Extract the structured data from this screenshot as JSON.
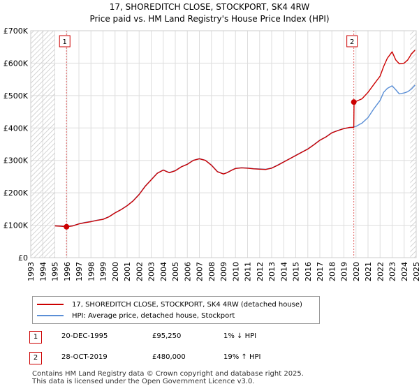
{
  "chart_data": {
    "type": "line",
    "title": "17, SHOREDITCH CLOSE, STOCKPORT, SK4 4RW",
    "subtitle": "Price paid vs. HM Land Registry's House Price Index (HPI)",
    "xlabel": "",
    "ylabel": "",
    "xlim": [
      1993,
      2025
    ],
    "ylim": [
      0,
      700000
    ],
    "x_ticks": [
      "1993",
      "1994",
      "1995",
      "1996",
      "1997",
      "1998",
      "1999",
      "2000",
      "2001",
      "2002",
      "2003",
      "2004",
      "2005",
      "2006",
      "2007",
      "2008",
      "2009",
      "2010",
      "2011",
      "2012",
      "2013",
      "2014",
      "2015",
      "2016",
      "2017",
      "2018",
      "2019",
      "2020",
      "2021",
      "2022",
      "2023",
      "2024",
      "2025"
    ],
    "y_ticks": [
      {
        "value": 0,
        "label": "£0"
      },
      {
        "value": 100000,
        "label": "£100K"
      },
      {
        "value": 200000,
        "label": "£200K"
      },
      {
        "value": 300000,
        "label": "£300K"
      },
      {
        "value": 400000,
        "label": "£400K"
      },
      {
        "value": 500000,
        "label": "£500K"
      },
      {
        "value": 600000,
        "label": "£600K"
      },
      {
        "value": 700000,
        "label": "£700K"
      }
    ],
    "grid": true,
    "hatched_ranges": [
      [
        1993,
        1995.0
      ],
      [
        2024.5,
        2025
      ]
    ],
    "series": [
      {
        "name": "17, SHOREDITCH CLOSE, STOCKPORT, SK4 4RW (detached house)",
        "color": "#cc0000",
        "x": [
          1995.0,
          1995.5,
          1995.97,
          1996.5,
          1997,
          1997.5,
          1998,
          1998.5,
          1999,
          1999.5,
          2000,
          2000.5,
          2001,
          2001.5,
          2002,
          2002.5,
          2003,
          2003.5,
          2004,
          2004.5,
          2005,
          2005.5,
          2006,
          2006.5,
          2007,
          2007.5,
          2008,
          2008.5,
          2009,
          2009.3,
          2009.7,
          2010,
          2010.5,
          2011,
          2011.5,
          2012,
          2012.5,
          2013,
          2013.5,
          2014,
          2014.5,
          2015,
          2015.5,
          2016,
          2016.5,
          2017,
          2017.5,
          2018,
          2018.5,
          2019,
          2019.5,
          2019.82,
          2019.84,
          2020,
          2020.5,
          2021,
          2021.5,
          2022,
          2022.3,
          2022.6,
          2023,
          2023.3,
          2023.6,
          2024,
          2024.3,
          2024.6,
          2024.9
        ],
        "y": [
          98000,
          97000,
          95250,
          98000,
          104000,
          108000,
          111000,
          115000,
          118000,
          126000,
          138000,
          148000,
          160000,
          175000,
          195000,
          220000,
          240000,
          260000,
          270000,
          262000,
          268000,
          280000,
          288000,
          300000,
          305000,
          300000,
          285000,
          265000,
          258000,
          262000,
          270000,
          275000,
          277000,
          276000,
          274000,
          273000,
          272000,
          276000,
          285000,
          295000,
          305000,
          315000,
          325000,
          335000,
          348000,
          362000,
          372000,
          385000,
          392000,
          398000,
          402000,
          402000,
          480000,
          482000,
          490000,
          510000,
          535000,
          560000,
          590000,
          615000,
          635000,
          610000,
          598000,
          600000,
          610000,
          628000,
          640000
        ]
      },
      {
        "name": "HPI: Average price, detached house, Stockport",
        "color": "#5b8fd6",
        "x": [
          1995.0,
          1995.5,
          1995.97,
          1996.5,
          1997,
          1997.5,
          1998,
          1998.5,
          1999,
          1999.5,
          2000,
          2000.5,
          2001,
          2001.5,
          2002,
          2002.5,
          2003,
          2003.5,
          2004,
          2004.5,
          2005,
          2005.5,
          2006,
          2006.5,
          2007,
          2007.5,
          2008,
          2008.5,
          2009,
          2009.3,
          2009.7,
          2010,
          2010.5,
          2011,
          2011.5,
          2012,
          2012.5,
          2013,
          2013.5,
          2014,
          2014.5,
          2015,
          2015.5,
          2016,
          2016.5,
          2017,
          2017.5,
          2018,
          2018.5,
          2019,
          2019.5,
          2019.82,
          2020,
          2020.5,
          2021,
          2021.5,
          2022,
          2022.3,
          2022.6,
          2023,
          2023.3,
          2023.6,
          2024,
          2024.3,
          2024.6,
          2024.9
        ],
        "y": [
          98500,
          97500,
          96000,
          98500,
          104500,
          108500,
          111500,
          115500,
          118500,
          126500,
          138500,
          148500,
          160500,
          175500,
          195500,
          220500,
          240500,
          260500,
          270500,
          262500,
          268500,
          280500,
          288500,
          300500,
          305500,
          300500,
          285500,
          265500,
          258500,
          262500,
          270500,
          275500,
          277500,
          276500,
          274500,
          273500,
          272500,
          276500,
          285500,
          295500,
          305500,
          315500,
          325500,
          335500,
          348500,
          362500,
          372500,
          385500,
          392500,
          398500,
          401000,
          403000,
          405000,
          415000,
          432000,
          460000,
          485000,
          510000,
          522000,
          530000,
          518000,
          505000,
          508000,
          512000,
          520000,
          532000
        ]
      }
    ],
    "sale_markers": [
      {
        "label": "1",
        "x": 1995.97,
        "y": 95250
      },
      {
        "label": "2",
        "x": 2019.82,
        "y": 480000
      }
    ]
  },
  "legend": {
    "entries": [
      {
        "label": "17, SHOREDITCH CLOSE, STOCKPORT, SK4 4RW (detached house)",
        "color": "#cc0000"
      },
      {
        "label": "HPI: Average price, detached house, Stockport",
        "color": "#5b8fd6"
      }
    ]
  },
  "sales": [
    {
      "num": "1",
      "date": "20-DEC-1995",
      "price": "£95,250",
      "hpi": "1% ↓ HPI"
    },
    {
      "num": "2",
      "date": "28-OCT-2019",
      "price": "£480,000",
      "hpi": "19% ↑ HPI"
    }
  ],
  "footer": {
    "line1": "Contains HM Land Registry data © Crown copyright and database right 2025.",
    "line2": "This data is licensed under the Open Government Licence v3.0."
  }
}
